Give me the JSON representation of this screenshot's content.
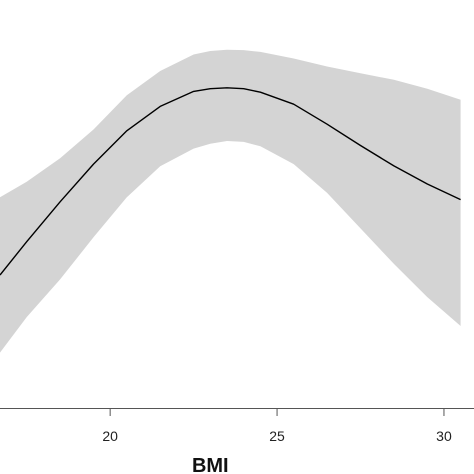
{
  "chart_data": {
    "type": "area",
    "xlabel": "BMI",
    "ylabel": "",
    "xlim": [
      16.7,
      30.9
    ],
    "ylim": [
      -0.3,
      0.62
    ],
    "x_ticks": [
      20,
      25,
      30
    ],
    "x_tick_labels": [
      "20",
      "25",
      "30"
    ],
    "grid": false,
    "colors": {
      "band": "#d4d4d4",
      "line": "#000000",
      "axis": "#555555"
    },
    "series": [
      {
        "type": "line",
        "x": [
          16.7,
          17.5,
          18.5,
          19.5,
          20.5,
          21.5,
          22.5,
          23.0,
          23.5,
          24.0,
          24.5,
          25.5,
          26.5,
          27.5,
          28.5,
          29.5,
          30.5
        ],
        "y": [
          0.0,
          0.075,
          0.165,
          0.25,
          0.325,
          0.38,
          0.414,
          0.42,
          0.422,
          0.42,
          0.412,
          0.385,
          0.34,
          0.292,
          0.246,
          0.205,
          0.17
        ]
      },
      {
        "type": "band",
        "x": [
          16.7,
          17.5,
          18.5,
          19.5,
          20.5,
          21.5,
          22.5,
          23.0,
          23.5,
          24.0,
          24.5,
          25.5,
          26.5,
          27.5,
          28.5,
          29.5,
          30.5
        ],
        "lower": [
          -0.175,
          -0.095,
          -0.01,
          0.085,
          0.175,
          0.245,
          0.285,
          0.296,
          0.302,
          0.3,
          0.29,
          0.25,
          0.185,
          0.105,
          0.025,
          -0.05,
          -0.115
        ],
        "upper": [
          0.175,
          0.21,
          0.263,
          0.328,
          0.405,
          0.46,
          0.497,
          0.505,
          0.508,
          0.507,
          0.503,
          0.488,
          0.47,
          0.455,
          0.44,
          0.42,
          0.395
        ]
      }
    ]
  }
}
